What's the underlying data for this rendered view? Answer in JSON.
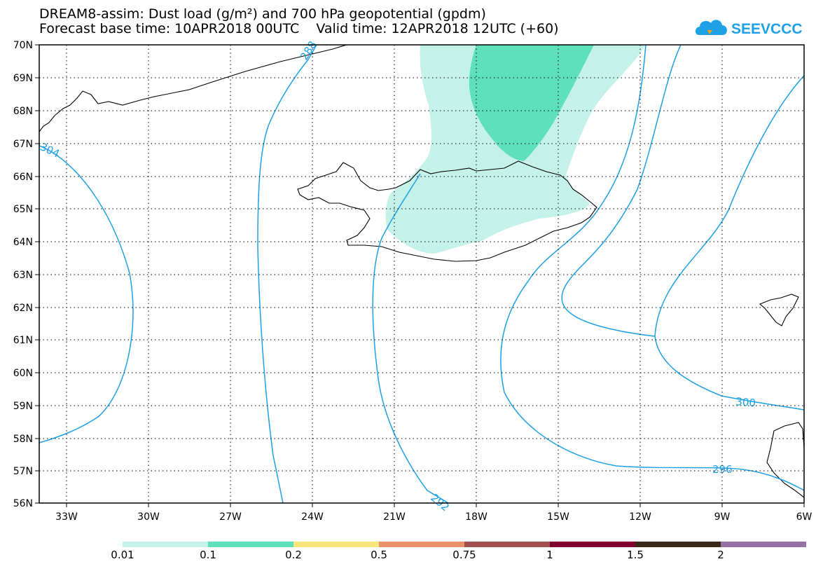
{
  "title": {
    "line1": "DREAM8-assim: Dust load (g/m²) and 700 hPa geopotential (gpdm)",
    "line2": "Forecast base time: 10APR2018 00UTC    Valid time: 12APR2018 12UTC (+60)"
  },
  "logo": {
    "text": "SEEVCCC",
    "icon": "cloud-icon",
    "color": "#1ea0e6"
  },
  "axes": {
    "lat_labels": [
      "70N",
      "69N",
      "68N",
      "67N",
      "66N",
      "65N",
      "64N",
      "63N",
      "62N",
      "61N",
      "60N",
      "59N",
      "58N",
      "57N",
      "56N"
    ],
    "lon_labels": [
      "33W",
      "30W",
      "27W",
      "24W",
      "21W",
      "18W",
      "15W",
      "12W",
      "9W",
      "6W"
    ]
  },
  "contours": {
    "color": "#1ea0e6",
    "labels": [
      "288",
      "292",
      "296",
      "300",
      "304"
    ]
  },
  "colorbar": {
    "labels": [
      "0.01",
      "0.1",
      "0.2",
      "0.5",
      "0.75",
      "1",
      "1.5",
      "2"
    ],
    "colors": [
      "#c4f2e9",
      "#5ee0ba",
      "#f7e77a",
      "#e8906a",
      "#a55050",
      "#800030",
      "#3a2818",
      "#9870a8"
    ]
  }
}
